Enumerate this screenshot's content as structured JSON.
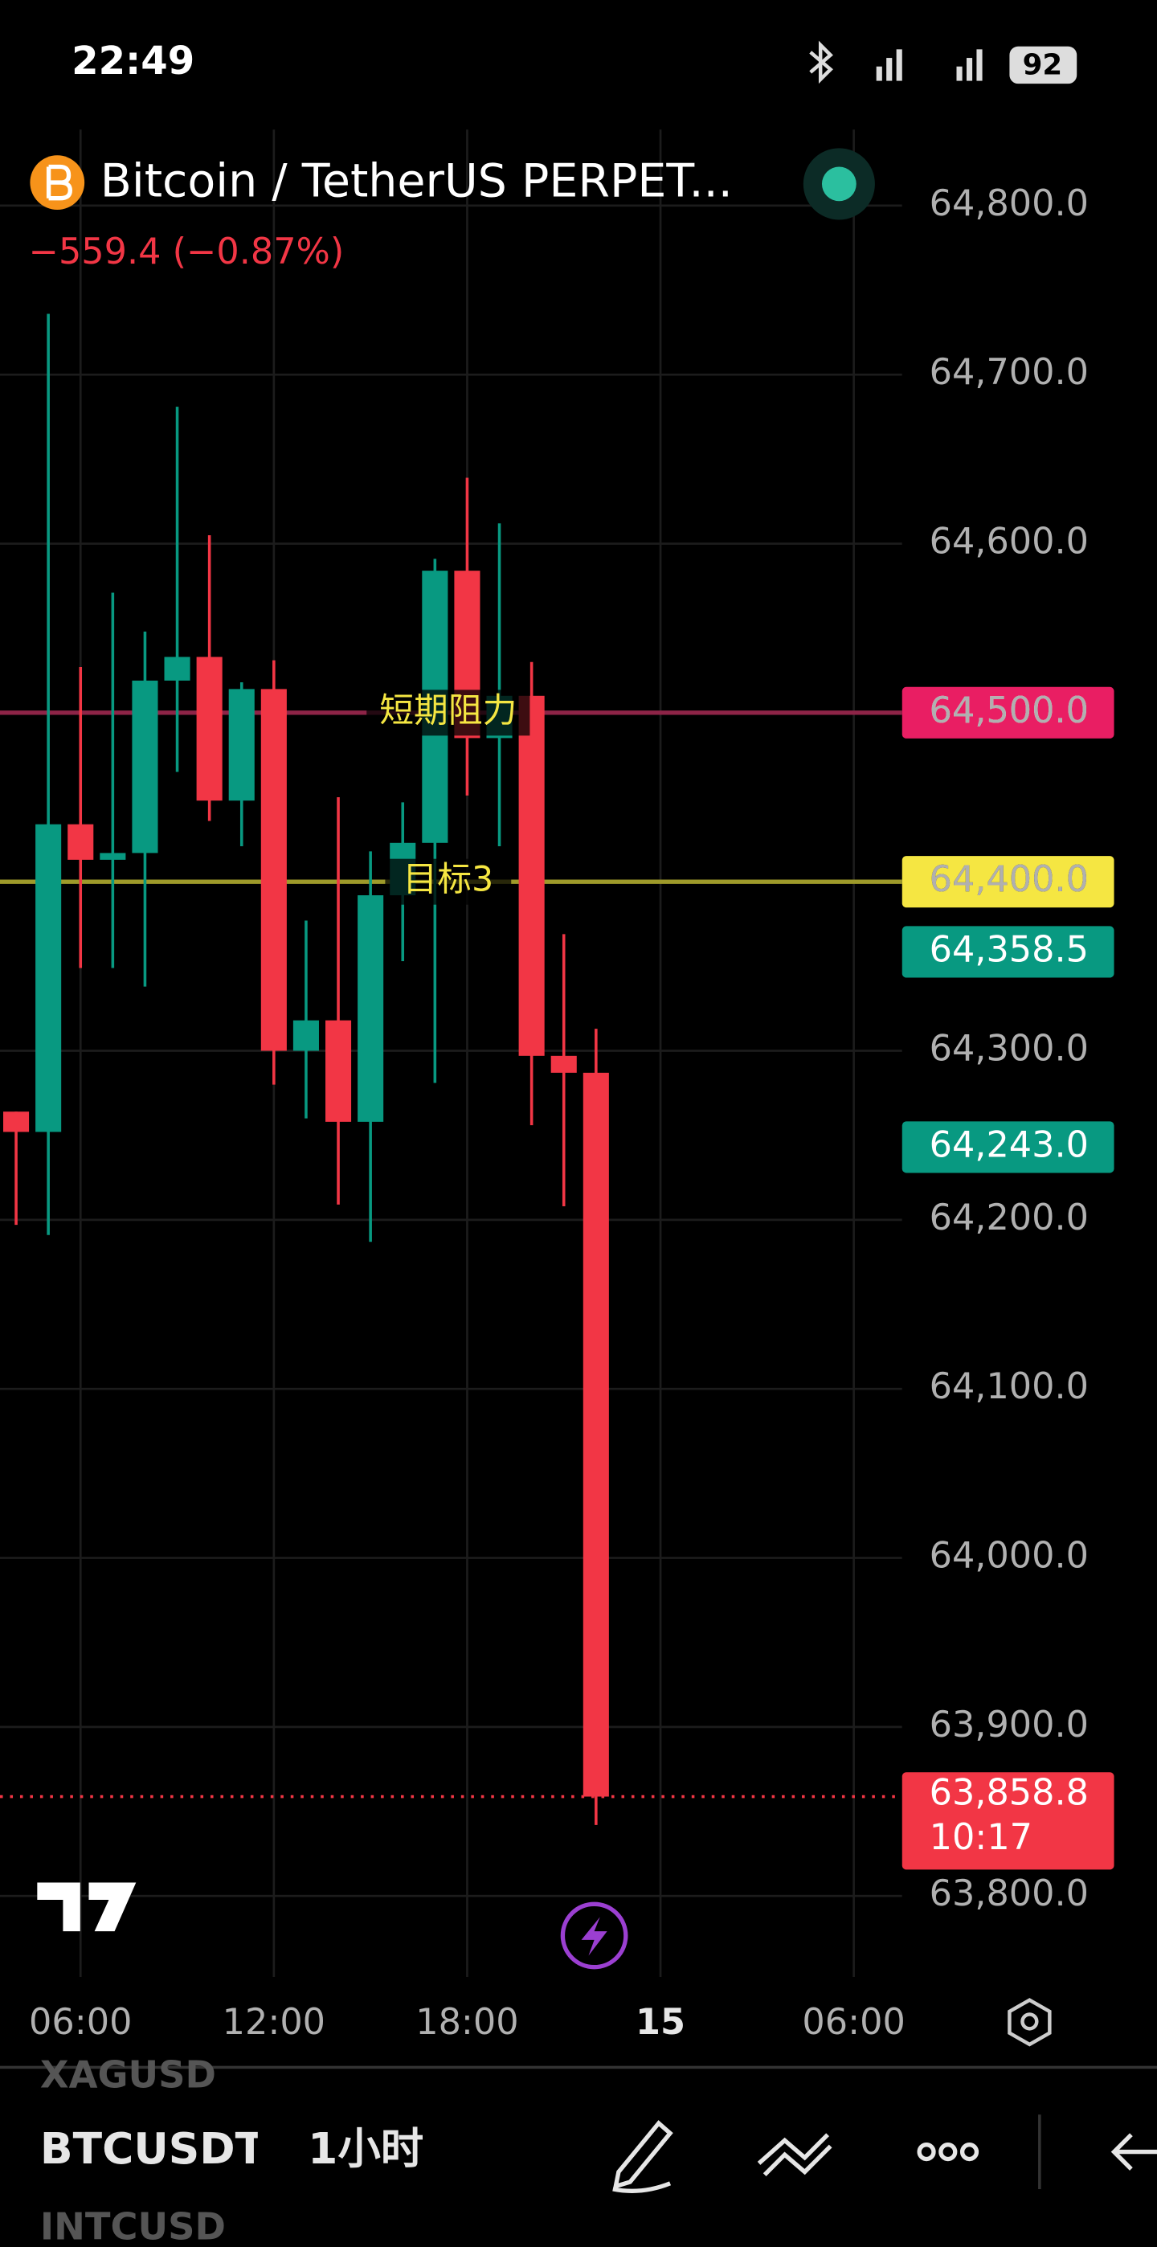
{
  "status_bar": {
    "time": "22:49",
    "battery": "92"
  },
  "chart_data": {
    "type": "candlestick",
    "title": "Bitcoin / TetherUS PERPET...",
    "change": "−559.4 (−0.87%)",
    "up_color": "#089981",
    "down_color": "#f23645",
    "x": [
      4,
      5,
      6,
      7,
      8,
      9,
      10,
      11,
      12,
      13,
      14,
      15,
      16,
      17,
      18,
      19,
      20,
      21,
      22
    ],
    "open": [
      64264,
      64252,
      64434,
      64413,
      64417,
      64519,
      64533,
      64448,
      64514,
      64300,
      64318,
      64258,
      64392,
      64423,
      64584,
      64485,
      64510,
      64297,
      64287
    ],
    "high": [
      64264,
      64736,
      64527,
      64571,
      64548,
      64681,
      64605,
      64518,
      64531,
      64377,
      64450,
      64418,
      64447,
      64591,
      64639,
      64612,
      64530,
      64369,
      64313
    ],
    "low": [
      64197,
      64191,
      64349,
      64349,
      64338,
      64465,
      64436,
      64421,
      64280,
      64260,
      64209,
      64187,
      64353,
      64281,
      64451,
      64421,
      64256,
      64208,
      63842
    ],
    "close": [
      64252,
      64434,
      64413,
      64417,
      64519,
      64533,
      64448,
      64514,
      64300,
      64318,
      64258,
      64392,
      64423,
      64584,
      64485,
      64510,
      64297,
      64287,
      63858.8
    ],
    "xlim": [
      3.5,
      31.5
    ],
    "xticks": [
      {
        "value": 6,
        "label": "06:00"
      },
      {
        "value": 12,
        "label": "12:00"
      },
      {
        "value": 18,
        "label": "18:00"
      },
      {
        "value": 24,
        "label": "15"
      },
      {
        "value": 30,
        "label": "06:00"
      }
    ],
    "ylim": [
      63752,
      64845
    ],
    "yticks": [
      {
        "value": 63800,
        "label": "63,800.0"
      },
      {
        "value": 63900,
        "label": "63,900.0"
      },
      {
        "value": 64000,
        "label": "64,000.0"
      },
      {
        "value": 64100,
        "label": "64,100.0"
      },
      {
        "value": 64200,
        "label": "64,200.0"
      },
      {
        "value": 64300,
        "label": "64,300.0"
      },
      {
        "value": 64400,
        "label": "64,400.0"
      },
      {
        "value": 64500,
        "label": "64,500.0"
      },
      {
        "value": 64600,
        "label": "64,600.0"
      },
      {
        "value": 64700,
        "label": "64,700.0"
      },
      {
        "value": 64800,
        "label": "64,800.0"
      }
    ],
    "grid": true,
    "levels": [
      {
        "value": 64500,
        "label": "64,500.0",
        "text": "短期阻力",
        "line_color": "#8e2447",
        "tag_color": "#e91e63",
        "tag_text_color": "#ffffff",
        "text_color": "#f5e642"
      },
      {
        "value": 64400,
        "label": "64,400.0",
        "text": "目标3",
        "line_color": "#9e9a2a",
        "tag_color": "#f5e642",
        "tag_text_color": "#000000",
        "text_color": "#f5e642"
      }
    ],
    "price_tags": [
      {
        "value": 64358.5,
        "label": "64,358.5",
        "color": "#089981"
      },
      {
        "value": 64243.0,
        "label": "64,243.0",
        "color": "#089981"
      }
    ],
    "last_price": {
      "value": 63858.8,
      "label": "63,858.8",
      "countdown": "10:17",
      "color": "#f23645"
    }
  },
  "toolbar": {
    "prev_symbol": "XAGUSD",
    "symbol": "BTCUSDT",
    "interval": "1小时",
    "next_symbol": "INTCUSD"
  }
}
